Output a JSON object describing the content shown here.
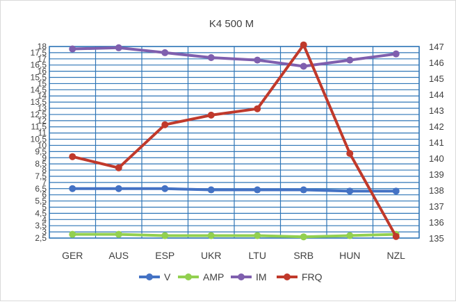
{
  "chart_data": {
    "type": "line",
    "title": "K4 500 M",
    "categories": [
      "GER",
      "AUS",
      "ESP",
      "UKR",
      "LTU",
      "SRB",
      "HUN",
      "NZL"
    ],
    "grid": true,
    "legend_position": "bottom",
    "left_axis": {
      "ylim": [
        2.5,
        18
      ],
      "ticks": [
        "2,5",
        "3",
        "3,5",
        "4",
        "4,5",
        "5",
        "5,5",
        "6",
        "6,5",
        "7",
        "7,5",
        "8",
        "8,5",
        "9",
        "9,5",
        "10",
        "10,5",
        "11",
        "11,5",
        "12",
        "12,5",
        "13",
        "13,5",
        "14",
        "14,5",
        "15",
        "15,5",
        "16",
        "16,5",
        "17",
        "17,5",
        "18"
      ]
    },
    "right_axis": {
      "ylim": [
        135,
        147
      ],
      "ticks": [
        "135",
        "136",
        "137",
        "138",
        "139",
        "140",
        "141",
        "142",
        "143",
        "144",
        "145",
        "146",
        "147"
      ]
    },
    "series": [
      {
        "name": "V",
        "axis": "left",
        "color": "#4472c4",
        "values": [
          6.5,
          6.5,
          6.5,
          6.4,
          6.4,
          6.4,
          6.3,
          6.3
        ]
      },
      {
        "name": "AMP",
        "axis": "left",
        "color": "#92d050",
        "values": [
          2.8,
          2.8,
          2.7,
          2.7,
          2.7,
          2.6,
          2.7,
          2.8
        ]
      },
      {
        "name": "IM",
        "axis": "left",
        "color": "#7f5fae",
        "values": [
          17.8,
          17.9,
          17.5,
          17.1,
          16.9,
          16.4,
          16.9,
          17.4
        ]
      },
      {
        "name": "FRQ",
        "axis": "right",
        "color": "#c0392b",
        "values": [
          140.1,
          139.4,
          142.1,
          142.7,
          143.1,
          147.1,
          140.3,
          135.1
        ]
      }
    ]
  }
}
